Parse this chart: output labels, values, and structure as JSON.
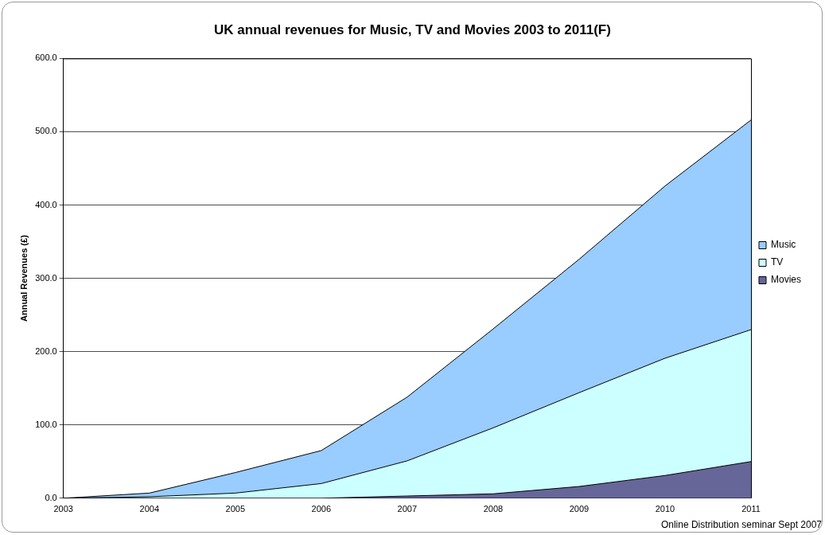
{
  "chart_data": {
    "type": "area",
    "title": "UK annual revenues for Music, TV and Movies 2003 to 2011(F)",
    "ylabel": "Annual Revenues (£)",
    "categories": [
      "2003",
      "2004",
      "2005",
      "2006",
      "2007",
      "2008",
      "2009",
      "2010",
      "2011"
    ],
    "stacked": true,
    "series": [
      {
        "name": "Movies",
        "color": "#666699",
        "values": [
          0,
          0,
          0,
          0,
          3,
          6,
          16,
          31,
          50
        ]
      },
      {
        "name": "TV",
        "color": "#ccffff",
        "values": [
          0,
          2,
          7,
          20,
          48,
          90,
          128,
          160,
          180
        ]
      },
      {
        "name": "Music",
        "color": "#99ccff",
        "values": [
          0,
          5,
          28,
          45,
          87,
          135,
          182,
          235,
          286
        ]
      }
    ],
    "ylim": [
      0,
      600
    ],
    "yticks": [
      {
        "value": 0,
        "label": "0.0"
      },
      {
        "value": 100,
        "label": "100.0"
      },
      {
        "value": 200,
        "label": "200.0"
      },
      {
        "value": 300,
        "label": "300.0"
      },
      {
        "value": 400,
        "label": "400.0"
      },
      {
        "value": 500,
        "label": "500.0"
      },
      {
        "value": 600,
        "label": "600.0"
      }
    ],
    "grid": "y",
    "legend": "right",
    "annotations": [
      "Online Distribution seminar Sept 2007"
    ]
  }
}
